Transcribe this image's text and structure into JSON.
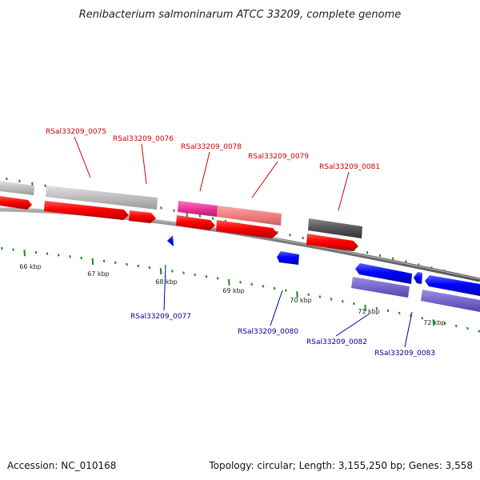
{
  "title": "Renibacterium salmoninarum ATCC 33209, complete genome",
  "footer": {
    "accession": "Accession: NC_010168",
    "summary": "Topology: circular; Length: 3,155,250 bp; Genes: 3,558"
  },
  "ruler_labels": [
    "66 kbp",
    "67 kbp",
    "68 kbp",
    "69 kbp",
    "70 kbp",
    "71 kbp",
    "72 kbp"
  ],
  "forward_genes": [
    "RSal33209_0075",
    "RSal33209_0076",
    "RSal33209_0078",
    "RSal33209_0079",
    "RSal33209_0081"
  ],
  "reverse_genes": [
    "RSal33209_0077",
    "RSal33209_0080",
    "RSal33209_0082",
    "RSal33209_0083"
  ],
  "colors": {
    "forward_label": "#cc0000",
    "reverse_label": "#000099",
    "cds_forward": "#ff0000",
    "cds_reverse": "#0000ff",
    "gene_light": "#c0c0c0",
    "gene_dark": "#555555",
    "gene_pink": "#ee3399",
    "gene_salmon": "#f08080",
    "gene_purple": "#7766cc",
    "tick": "#1a8a1a",
    "backbone": "#777777"
  }
}
